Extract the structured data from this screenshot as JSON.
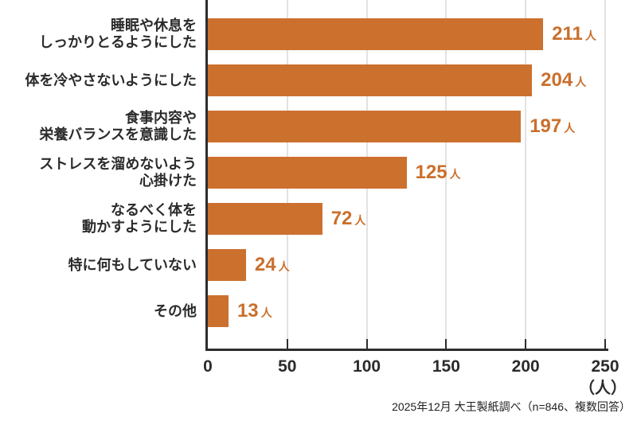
{
  "chart_data": {
    "type": "bar",
    "orientation": "horizontal",
    "title": "",
    "xlabel": "",
    "ylabel": "",
    "x_axis": {
      "range": [
        0,
        250
      ],
      "ticks": [
        0,
        50,
        100,
        150,
        200,
        250
      ],
      "unit_label": "（人）",
      "grid": true
    },
    "value_unit_suffix": "人",
    "categories": [
      "睡眠や休息をしっかりとるようにした",
      "体を冷やさないようにした",
      "食事内容や栄養バランスを意識した",
      "ストレスを溜めないよう心掛けた",
      "なるべく体を動かすようにした",
      "特に何もしていない",
      "その他"
    ],
    "values": [
      211,
      204,
      197,
      125,
      72,
      24,
      13
    ],
    "bars": [
      {
        "label_lines": [
          "睡眠や休息を",
          "しっかりとるようにした"
        ],
        "value": 211,
        "value_label": "211"
      },
      {
        "label_lines": [
          "体を冷やさないようにした"
        ],
        "value": 204,
        "value_label": "204"
      },
      {
        "label_lines": [
          "食事内容や",
          "栄養バランスを意識した"
        ],
        "value": 197,
        "value_label": "197"
      },
      {
        "label_lines": [
          "ストレスを溜めないよう",
          "心掛けた"
        ],
        "value": 125,
        "value_label": "125"
      },
      {
        "label_lines": [
          "なるべく体を",
          "動かすようにした"
        ],
        "value": 72,
        "value_label": "72"
      },
      {
        "label_lines": [
          "特に何もしていない"
        ],
        "value": 24,
        "value_label": "24"
      },
      {
        "label_lines": [
          "その他"
        ],
        "value": 13,
        "value_label": "13"
      }
    ],
    "colors": {
      "bar": "#cc702e",
      "value_text": "#ca6f2c",
      "axis": "#2d2d2d",
      "gridline": "#e2e2e2",
      "category_text": "#2b2b2b",
      "tick_text": "#2b2b2b"
    },
    "legend": null
  },
  "footer": {
    "source_note": "2025年12月 大王製紙調べ（n=846、複数回答）"
  }
}
